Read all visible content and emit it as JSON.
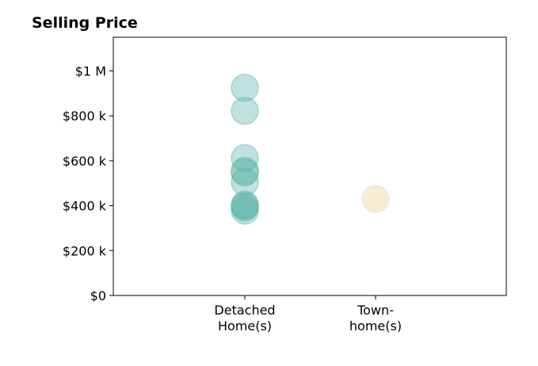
{
  "chart_data": {
    "type": "scatter",
    "title": "Selling Price",
    "xlabel": "",
    "ylabel": "",
    "categories": [
      [
        "Detached",
        "Home(s)"
      ],
      [
        "Town-",
        "home(s)"
      ]
    ],
    "ylim": [
      0,
      1150000
    ],
    "yticks": [
      {
        "value": 0,
        "label": "$0"
      },
      {
        "value": 200000,
        "label": "$200 k"
      },
      {
        "value": 400000,
        "label": "$400 k"
      },
      {
        "value": 600000,
        "label": "$600 k"
      },
      {
        "value": 800000,
        "label": "$800 k"
      },
      {
        "value": 1000000,
        "label": "$1 M"
      }
    ],
    "grid": false,
    "series": [
      {
        "category_index": 0,
        "color": "#5ab4a8",
        "values": [
          925000,
          822000,
          612000,
          555000,
          548000,
          505000,
          405000,
          398000,
          392000,
          378000
        ]
      },
      {
        "category_index": 1,
        "color": "#f3dfb4",
        "values": [
          430000
        ]
      }
    ]
  }
}
